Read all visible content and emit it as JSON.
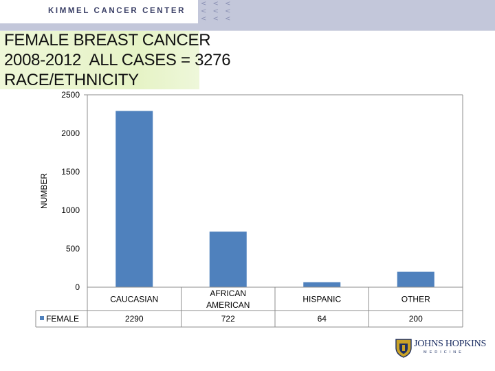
{
  "header": {
    "org_name": "KIMMEL CANCER CENTER",
    "chevrons": "<<<\n<<<\n<<<",
    "accent_color": "#c3c7da"
  },
  "title_lines": [
    "FEMALE BREAST CANCER",
    "2008-2012  ALL CASES = 3276",
    "RACE/ETHNICITY"
  ],
  "chart_data": {
    "type": "bar",
    "categories": [
      "CAUCASIAN",
      "AFRICAN\nAMERICAN",
      "HISPANIC",
      "OTHER"
    ],
    "series": [
      {
        "name": "FEMALE",
        "values": [
          2290,
          722,
          64,
          200
        ],
        "color": "#4f81bd"
      }
    ],
    "ylabel": "NUMBER",
    "ylim": [
      0,
      2500
    ],
    "yticks": [
      0,
      500,
      1000,
      1500,
      2000,
      2500
    ],
    "grid": false,
    "data_table": true
  },
  "logo": {
    "name": "JOHNS HOPKINS",
    "sub": "MEDICINE",
    "icon": "johns-hopkins-shield-icon"
  }
}
